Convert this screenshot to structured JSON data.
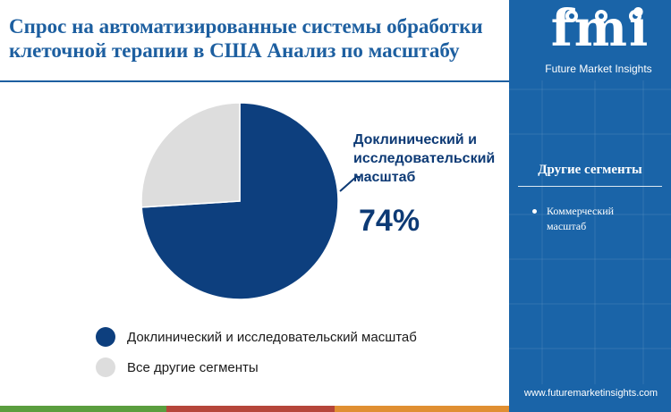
{
  "header": {
    "title": "Спрос на автоматизированные системы обработки клеточной терапии в США Анализ по масштабу"
  },
  "chart_data": {
    "type": "pie",
    "title": "Спрос на автоматизированные системы обработки клеточной терапии в США Анализ по масштабу",
    "slices": [
      {
        "label": "Доклинический и исследовательский масштаб",
        "value": 74,
        "color": "#0d3f7e"
      },
      {
        "label": "Все другие сегменты",
        "value": 26,
        "color": "#dddddd"
      }
    ],
    "callout": {
      "label": "Доклинический и исследовательский масштаб",
      "value_text": "74%"
    },
    "legend_position": "bottom-left"
  },
  "sidebar": {
    "logo_text": "fmi",
    "logo_subtitle": "Future Market Insights",
    "other_segments_title": "Другие сегменты",
    "other_segments": [
      "Коммерческий масштаб"
    ],
    "website": "www.futuremarketinsights.com"
  },
  "colors": {
    "brand_blue": "#1a64a8",
    "title_blue": "#1d5fa0",
    "dark_navy": "#0d3a75",
    "bottom_bar": [
      "#5a9e3e",
      "#b5463a",
      "#e08f32",
      "#1a64a8"
    ]
  }
}
